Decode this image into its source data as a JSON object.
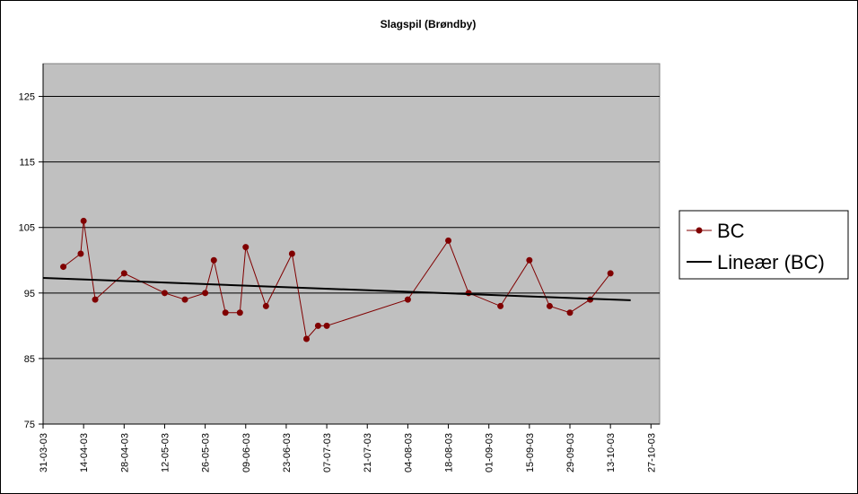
{
  "chart_data": {
    "type": "line",
    "title": "Slagspil (Brøndby)",
    "xlabel": "",
    "ylabel": "",
    "ylim": [
      75,
      130
    ],
    "yticks": [
      75,
      85,
      95,
      105,
      115,
      125
    ],
    "xlim": [
      "31-03-03",
      "30-10-03"
    ],
    "xtick_labels": [
      "31-03-03",
      "14-04-03",
      "28-04-03",
      "12-05-03",
      "26-05-03",
      "09-06-03",
      "23-06-03",
      "07-07-03",
      "21-07-03",
      "04-08-03",
      "18-08-03",
      "01-09-03",
      "15-09-03",
      "29-09-03",
      "13-10-03",
      "27-10-03"
    ],
    "grid": "horizontal",
    "legend_position": "right",
    "series": [
      {
        "name": "BC",
        "color": "#800000",
        "marker": "circle",
        "points": [
          {
            "x": "2003-04-07",
            "y": 99
          },
          {
            "x": "2003-04-13",
            "y": 101
          },
          {
            "x": "2003-04-14",
            "y": 106
          },
          {
            "x": "2003-04-18",
            "y": 94
          },
          {
            "x": "2003-04-28",
            "y": 98
          },
          {
            "x": "2003-05-12",
            "y": 95
          },
          {
            "x": "2003-05-19",
            "y": 94
          },
          {
            "x": "2003-05-26",
            "y": 95
          },
          {
            "x": "2003-05-29",
            "y": 100
          },
          {
            "x": "2003-06-02",
            "y": 92
          },
          {
            "x": "2003-06-07",
            "y": 92
          },
          {
            "x": "2003-06-09",
            "y": 102
          },
          {
            "x": "2003-06-16",
            "y": 93
          },
          {
            "x": "2003-06-25",
            "y": 101
          },
          {
            "x": "2003-06-30",
            "y": 88
          },
          {
            "x": "2003-07-04",
            "y": 90
          },
          {
            "x": "2003-07-07",
            "y": 90
          },
          {
            "x": "2003-08-04",
            "y": 94
          },
          {
            "x": "2003-08-18",
            "y": 103
          },
          {
            "x": "2003-08-25",
            "y": 95
          },
          {
            "x": "2003-09-05",
            "y": 93
          },
          {
            "x": "2003-09-15",
            "y": 100
          },
          {
            "x": "2003-09-22",
            "y": 93
          },
          {
            "x": "2003-09-29",
            "y": 92
          },
          {
            "x": "2003-10-06",
            "y": 94
          },
          {
            "x": "2003-10-13",
            "y": 98
          }
        ]
      },
      {
        "name": "Lineær (BC)",
        "color": "#000000",
        "marker": "none",
        "points": [
          {
            "x": "2003-03-31",
            "y": 97.3
          },
          {
            "x": "2003-10-20",
            "y": 93.9
          }
        ]
      }
    ]
  }
}
